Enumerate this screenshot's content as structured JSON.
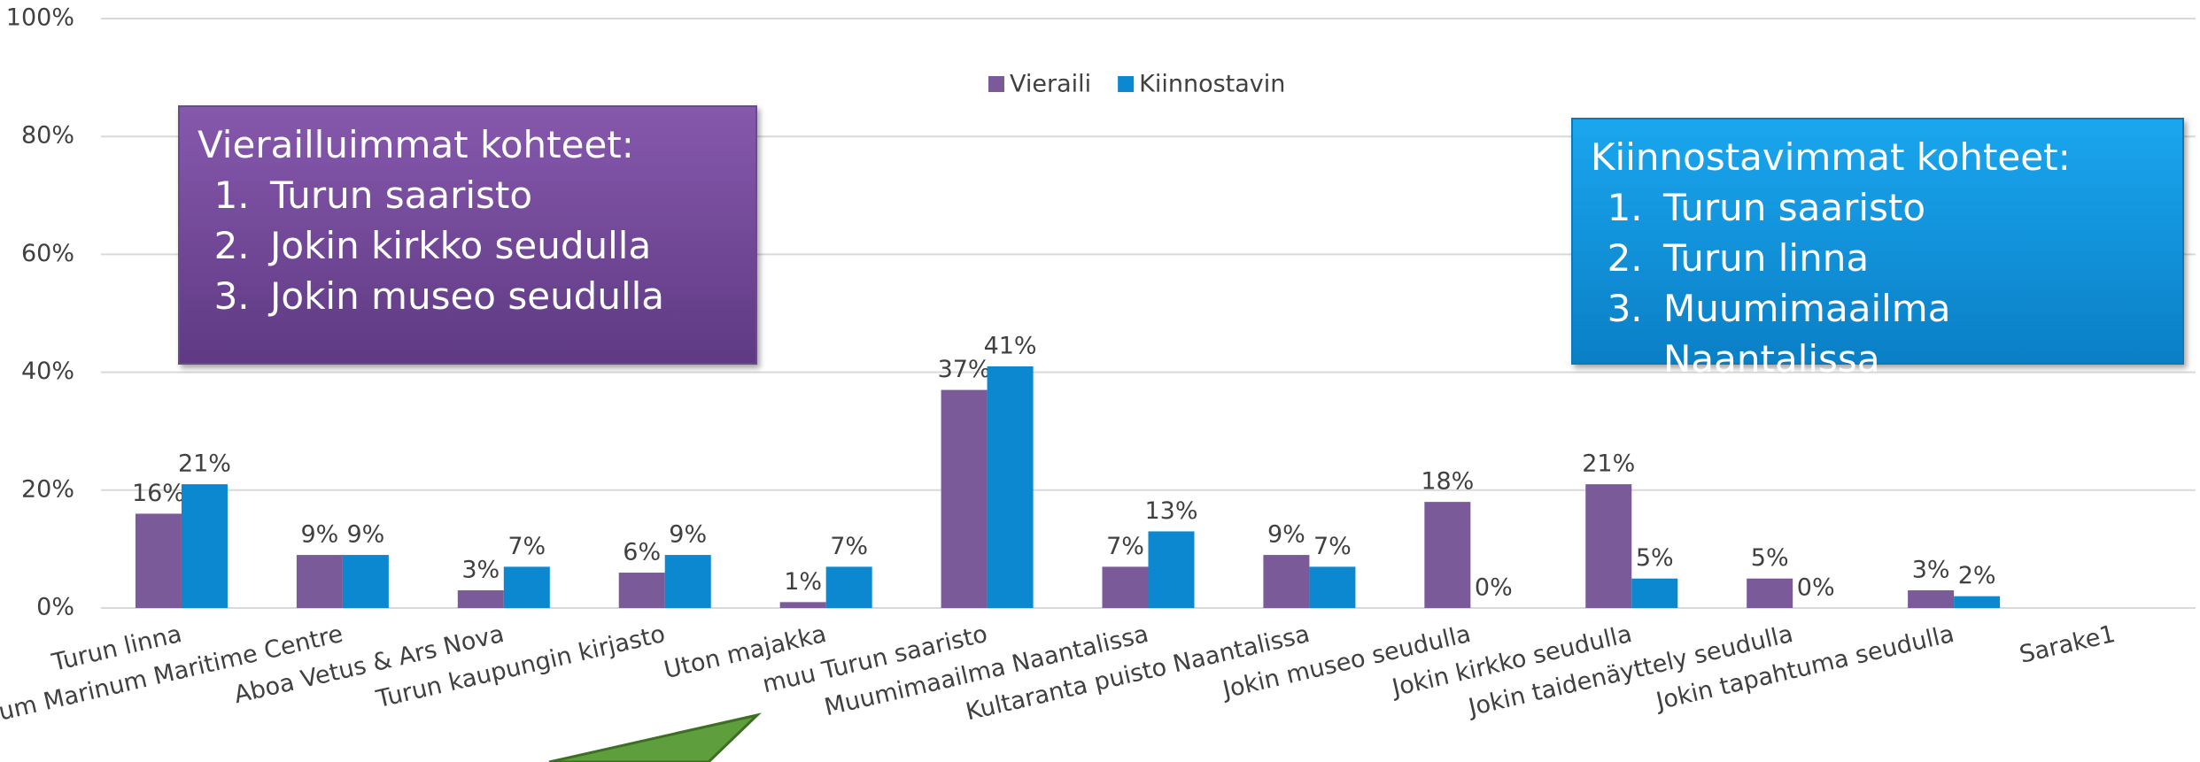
{
  "chart_data": {
    "type": "bar",
    "categories": [
      "Turun linna",
      "Forum Marinum Maritime Centre",
      "Aboa Vetus & Ars Nova",
      "Turun kaupungin kirjasto",
      "Uton majakka",
      "muu Turun saaristo",
      "Muumimaailma Naantalissa",
      "Kultaranta puisto Naantalissa",
      "Jokin museo seudulla",
      "Jokin kirkko seudulla",
      "Jokin taidenäyttely seudulla",
      "Jokin tapahtuma seudulla",
      "Sarake1"
    ],
    "series": [
      {
        "name": "Vieraili",
        "color": "#7a5a99",
        "values": [
          16,
          9,
          3,
          6,
          1,
          37,
          7,
          9,
          18,
          21,
          5,
          3,
          null
        ],
        "value_labels": [
          "16%",
          "9%",
          "3%",
          "6%",
          "1%",
          "37%",
          "7%",
          "9%",
          "18%",
          "21%",
          "5%",
          "3%",
          null
        ]
      },
      {
        "name": "Kiinnostavin",
        "color": "#0b88cf",
        "values": [
          21,
          9,
          7,
          9,
          7,
          41,
          13,
          7,
          0,
          5,
          0,
          2,
          null
        ],
        "value_labels": [
          "21%",
          "9%",
          "7%",
          "9%",
          "7%",
          "41%",
          "13%",
          "7%",
          "0%",
          "5%",
          "0%",
          "2%",
          null
        ]
      }
    ],
    "ylim": [
      0,
      100
    ],
    "yticks": [
      {
        "value": 0,
        "label": "0%"
      },
      {
        "value": 20,
        "label": "20%"
      },
      {
        "value": 40,
        "label": "40%"
      },
      {
        "value": 60,
        "label": "60%"
      },
      {
        "value": 80,
        "label": "80%"
      },
      {
        "value": 100,
        "label": "100%"
      }
    ],
    "grid": true,
    "legend": "top",
    "annotations": [
      {
        "title": "Vierailluimmat kohteet:",
        "items": [
          "Turun saaristo",
          "Jokin kirkko seudulla",
          "Jokin museo seudulla"
        ]
      },
      {
        "title": "Kiinnostavimmat kohteet:",
        "items": [
          "Turun saaristo",
          "Turun linna",
          "Muumimaailma Naantalissa"
        ]
      }
    ]
  }
}
